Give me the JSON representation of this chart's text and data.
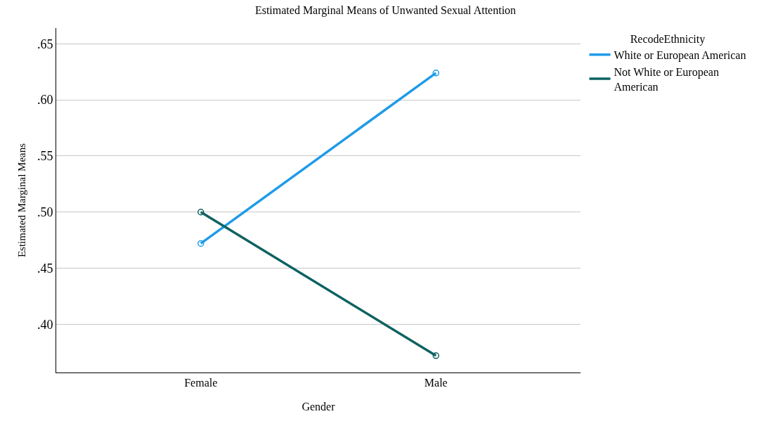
{
  "chart_data": {
    "type": "line",
    "title": "Estimated Marginal Means of Unwanted Sexual Attention",
    "xlabel": "Gender",
    "ylabel": "Estimated Marginal Means",
    "legend_title": "RecodeEthnicity",
    "categories": [
      "Female",
      "Male"
    ],
    "series": [
      {
        "name": "White or European American",
        "color": "#1f9be8",
        "values": [
          0.472,
          0.624
        ]
      },
      {
        "name": "Not White or European American",
        "color": "#0e6262",
        "values": [
          0.5,
          0.372
        ]
      }
    ],
    "ylim": [
      0.357,
      0.664
    ],
    "yticks": [
      {
        "value": 0.4,
        "label": ".40"
      },
      {
        "value": 0.45,
        "label": ".45"
      },
      {
        "value": 0.5,
        "label": ".50"
      },
      {
        "value": 0.55,
        "label": ".55"
      },
      {
        "value": 0.6,
        "label": ".60"
      },
      {
        "value": 0.65,
        "label": ".65"
      }
    ],
    "grid": "y",
    "legend": "top right",
    "marker": "circle",
    "line_style": "solid"
  }
}
